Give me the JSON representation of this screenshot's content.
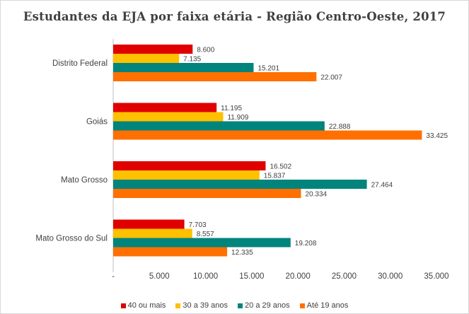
{
  "chart_data": {
    "type": "bar",
    "orientation": "horizontal",
    "title": "Estudantes da EJA por faixa etária - Região Centro-Oeste, 2017",
    "categories": [
      "Distrito Federal",
      "Goiás",
      "Mato Grosso",
      "Mato Grosso do Sul"
    ],
    "series": [
      {
        "name": "40 ou mais",
        "color": "#e00000",
        "values": [
          8600,
          11195,
          16502,
          7703
        ],
        "labels": [
          "8.600",
          "11.195",
          "16.502",
          "7.703"
        ]
      },
      {
        "name": "30 a 39 anos",
        "color": "#ffc000",
        "values": [
          7135,
          11909,
          15837,
          8557
        ],
        "labels": [
          "7.135",
          "11.909",
          "15.837",
          "8.557"
        ]
      },
      {
        "name": "20 a 29 anos",
        "color": "#00847c",
        "values": [
          15201,
          22888,
          27464,
          19208
        ],
        "labels": [
          "15.201",
          "22.888",
          "27.464",
          "19.208"
        ]
      },
      {
        "name": "Até 19 anos",
        "color": "#ff7000",
        "values": [
          22007,
          33425,
          20334,
          12335
        ],
        "labels": [
          "22.007",
          "33.425",
          "20.334",
          "12.335"
        ]
      }
    ],
    "xlim": [
      0,
      35000
    ],
    "xticks": [
      0,
      5000,
      10000,
      15000,
      20000,
      25000,
      30000,
      35000
    ],
    "xtick_labels": [
      "-",
      "5.000",
      "10.000",
      "15.000",
      "20.000",
      "25.000",
      "30.000",
      "35.000"
    ],
    "grid": false,
    "legend_position": "bottom"
  }
}
